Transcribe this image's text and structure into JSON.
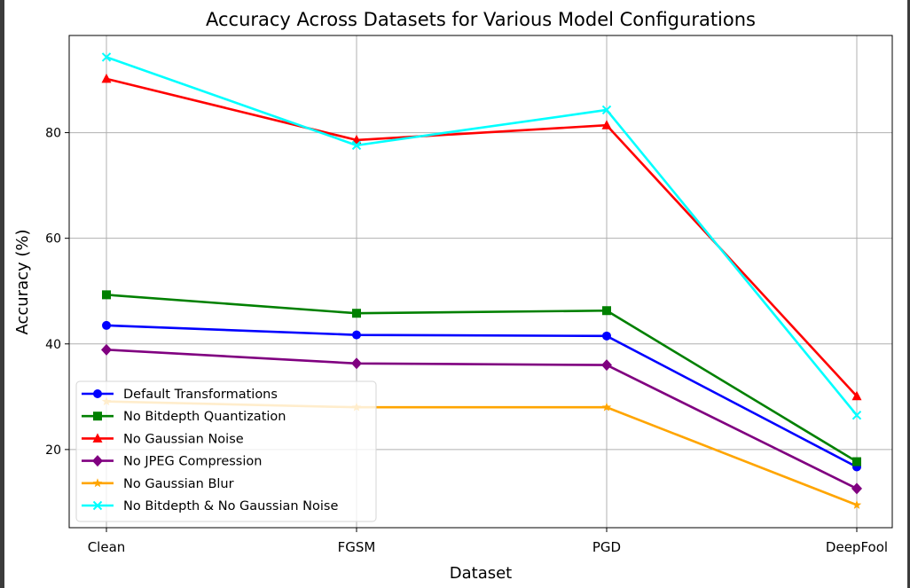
{
  "chart_data": {
    "type": "line",
    "title": "Accuracy Across Datasets for Various Model Configurations",
    "xlabel": "Dataset",
    "ylabel": "Accuracy (%)",
    "categories": [
      "Clean",
      "FGSM",
      "PGD",
      "DeepFool"
    ],
    "ylim": [
      5.2,
      98.4
    ],
    "yticks": [
      20,
      40,
      60,
      80
    ],
    "grid": true,
    "legend_position": "lower-left",
    "series": [
      {
        "name": "Default Transformations",
        "values": [
          43.5,
          41.7,
          41.5,
          16.7
        ],
        "color": "#0000ff",
        "marker": "circle"
      },
      {
        "name": "No Bitdepth Quantization",
        "values": [
          49.3,
          45.8,
          46.3,
          17.7
        ],
        "color": "#008000",
        "marker": "square"
      },
      {
        "name": "No Gaussian Noise",
        "values": [
          90.2,
          78.6,
          81.4,
          30.1
        ],
        "color": "#ff0000",
        "marker": "triangle"
      },
      {
        "name": "No JPEG Compression",
        "values": [
          38.9,
          36.3,
          36.0,
          12.6
        ],
        "color": "#800080",
        "marker": "diamond"
      },
      {
        "name": "No Gaussian Blur",
        "values": [
          29.1,
          28.0,
          28.0,
          9.5
        ],
        "color": "#ffa500",
        "marker": "star"
      },
      {
        "name": "No Bitdepth & No Gaussian Noise",
        "values": [
          94.3,
          77.6,
          84.3,
          26.5
        ],
        "color": "#00ffff",
        "marker": "x"
      }
    ]
  }
}
